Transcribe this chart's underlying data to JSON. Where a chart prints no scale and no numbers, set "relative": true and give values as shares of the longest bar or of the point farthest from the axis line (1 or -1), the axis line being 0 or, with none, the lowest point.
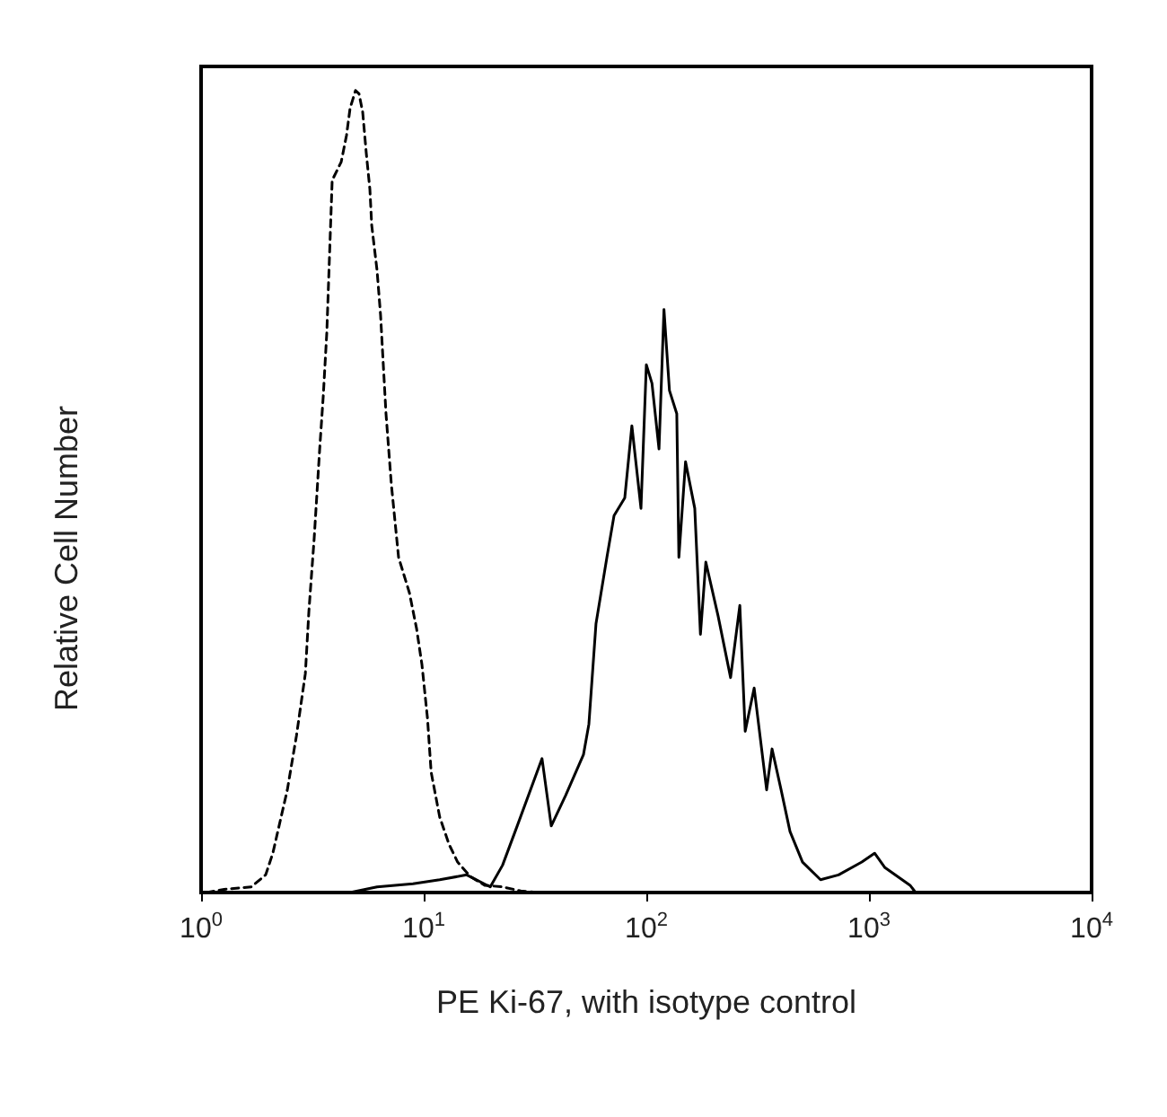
{
  "chart_data": {
    "type": "line",
    "xlabel": "PE Ki-67, with isotype control",
    "ylabel": "Relative Cell Number",
    "relative": true,
    "log": "x",
    "grid": false,
    "marker": "none",
    "xlim": [
      1,
      10000
    ],
    "xticks": [
      {
        "value": 1,
        "label": "10$^{0}$"
      },
      {
        "value": 10,
        "label": "10$^{1}$"
      },
      {
        "value": 100,
        "label": "10$^{2}$"
      },
      {
        "value": 1000,
        "label": "10$^{3}$"
      },
      {
        "value": 10000,
        "label": "10$^{4}$"
      }
    ],
    "series": [
      {
        "color": "#000000",
        "line_style": "dashed",
        "x": [
          1.06,
          1.27,
          1.68,
          1.95,
          2.1,
          2.44,
          2.68,
          2.94,
          3.05,
          3.22,
          3.41,
          3.54,
          3.67,
          3.88,
          4.26,
          4.5,
          4.67,
          4.94,
          5.12,
          5.32,
          5.52,
          5.73,
          5.84,
          6.17,
          6.4,
          6.77,
          7.16,
          7.71,
          8.62,
          9.29,
          9.82,
          10.4,
          10.8,
          11.8,
          13,
          14.2,
          16.2,
          18.8,
          22.6,
          27.3,
          32.8
        ],
        "values": [
          0,
          0.004,
          0.007,
          0.022,
          0.049,
          0.128,
          0.195,
          0.273,
          0.351,
          0.441,
          0.553,
          0.62,
          0.698,
          0.888,
          0.911,
          0.944,
          0.978,
          1,
          0.996,
          0.973,
          0.922,
          0.877,
          0.832,
          0.776,
          0.72,
          0.597,
          0.508,
          0.418,
          0.374,
          0.329,
          0.284,
          0.217,
          0.15,
          0.094,
          0.06,
          0.038,
          0.02,
          0.009,
          0.007,
          0.002,
          0
        ]
      },
      {
        "color": "#000000",
        "line_style": "solid",
        "x": [
          4.67,
          6.17,
          8.95,
          11.8,
          15.6,
          19.9,
          22.6,
          26.3,
          34,
          37.4,
          43.4,
          52.2,
          55.2,
          59.4,
          66.5,
          71.6,
          80,
          86.1,
          94.6,
          100,
          106,
          114,
          120,
          127,
          137,
          140,
          150,
          165,
          175,
          185,
          210,
          239,
          263,
          278,
          305,
          347,
          367,
          403,
          442,
          503,
          606,
          730,
          929,
          1060,
          1180,
          1530,
          1620
        ],
        "values": [
          0,
          0.007,
          0.011,
          0.016,
          0.022,
          0.007,
          0.034,
          0.083,
          0.167,
          0.083,
          0.121,
          0.172,
          0.21,
          0.335,
          0.418,
          0.47,
          0.492,
          0.582,
          0.479,
          0.658,
          0.635,
          0.553,
          0.727,
          0.626,
          0.597,
          0.418,
          0.537,
          0.479,
          0.322,
          0.412,
          0.345,
          0.268,
          0.358,
          0.201,
          0.255,
          0.128,
          0.179,
          0.128,
          0.076,
          0.038,
          0.016,
          0.022,
          0.038,
          0.049,
          0.031,
          0.009,
          0
        ]
      }
    ]
  }
}
